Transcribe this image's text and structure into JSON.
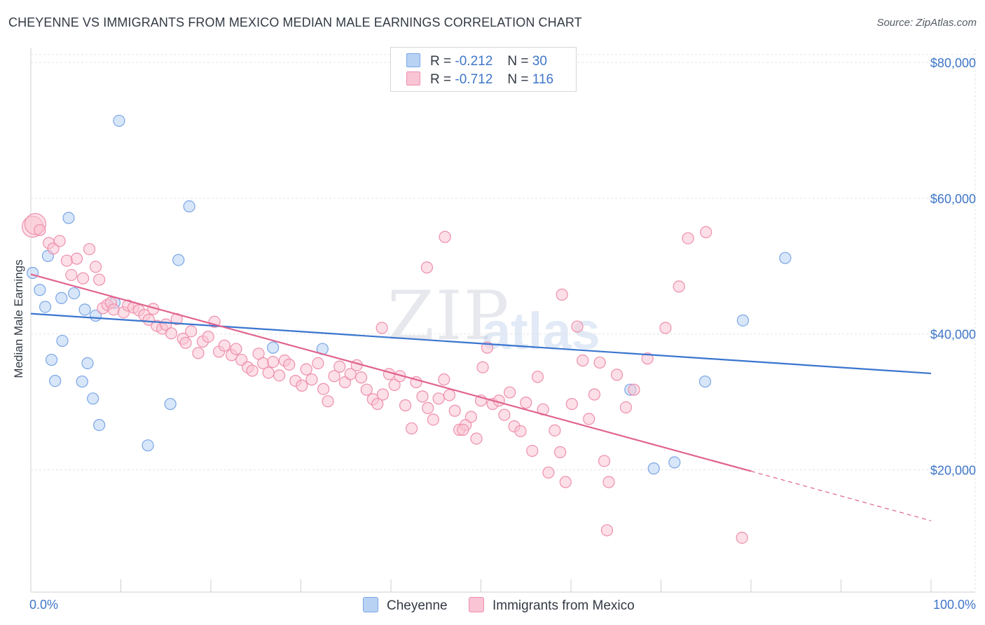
{
  "title": "CHEYENNE VS IMMIGRANTS FROM MEXICO MEDIAN MALE EARNINGS CORRELATION CHART",
  "source": "Source: ZipAtlas.com",
  "watermark": {
    "zip": "ZIP",
    "atlas": "atlas"
  },
  "legend": {
    "r_label": "R =",
    "n_label": "N =",
    "rows": [
      {
        "name": "Cheyenne",
        "r": "-0.212",
        "n": "30",
        "fill": "#b8d2f4",
        "stroke": "#7aa6e6"
      },
      {
        "name": "Immigrants from Mexico",
        "r": "-0.712",
        "n": "116",
        "fill": "#f9c4d4",
        "stroke": "#ee8fac"
      }
    ]
  },
  "chart_data": {
    "type": "scatter",
    "title": "CHEYENNE VS IMMIGRANTS FROM MEXICO MEDIAN MALE EARNINGS CORRELATION CHART",
    "xlabel": "",
    "ylabel": "Median Male Earnings",
    "xlim": [
      0,
      100
    ],
    "ylim": [
      2000,
      83000
    ],
    "x_tick_labels": [
      "0.0%",
      "100.0%"
    ],
    "y_ticks": [
      20000,
      40000,
      60000,
      80000
    ],
    "y_tick_labels": [
      "$20,000",
      "$40,000",
      "$60,000",
      "$80,000"
    ],
    "grid": true,
    "legend_position": "top-center",
    "series": [
      {
        "name": "Cheyenne",
        "color": "#3a75cf",
        "fill": "#b8d2f4",
        "trend": {
          "x": [
            0,
            100
          ],
          "y": [
            43000,
            34200
          ]
        },
        "x": [
          0.2,
          1.0,
          1.6,
          1.9,
          2.3,
          2.7,
          3.4,
          3.5,
          4.2,
          4.8,
          5.7,
          6.0,
          6.3,
          6.9,
          7.2,
          7.6,
          9.3,
          9.8,
          13.0,
          15.5,
          16.4,
          17.6,
          26.9,
          32.4,
          66.6,
          69.2,
          71.5,
          74.9,
          79.1,
          83.8
        ],
        "y": [
          49000,
          46500,
          44000,
          51500,
          36200,
          33100,
          45300,
          39000,
          57100,
          46000,
          33000,
          43600,
          35700,
          30500,
          42700,
          26600,
          44600,
          71400,
          23600,
          29700,
          50900,
          58800,
          38000,
          37800,
          31800,
          20200,
          21100,
          33000,
          42000,
          51200
        ]
      },
      {
        "name": "Immigrants from Mexico",
        "color": "#e0638f",
        "fill": "#f9c4d4",
        "trend": {
          "x": [
            0,
            80
          ],
          "y": [
            48800,
            19800
          ]
        },
        "trend_dashed": {
          "x": [
            80,
            100
          ],
          "y": [
            19800,
            12500
          ]
        },
        "x": [
          0.2,
          0.5,
          1.0,
          2.0,
          2.5,
          3.2,
          4.0,
          4.5,
          5.1,
          5.8,
          6.5,
          7.2,
          7.6,
          8.0,
          8.5,
          8.9,
          9.2,
          10.3,
          10.8,
          11.4,
          12.0,
          12.6,
          13.1,
          13.6,
          14.0,
          14.6,
          15.0,
          15.6,
          16.2,
          16.9,
          17.2,
          17.8,
          18.6,
          19.1,
          19.7,
          20.4,
          20.9,
          21.5,
          22.3,
          22.8,
          23.4,
          24.1,
          24.6,
          25.3,
          25.8,
          26.4,
          26.9,
          27.6,
          28.2,
          28.7,
          29.4,
          30.1,
          30.6,
          31.2,
          31.9,
          32.5,
          33.0,
          33.7,
          34.3,
          34.9,
          35.5,
          36.2,
          36.7,
          37.3,
          38.0,
          38.5,
          39.1,
          39.8,
          40.4,
          41.0,
          41.6,
          42.3,
          42.8,
          43.5,
          44.1,
          44.7,
          45.3,
          45.9,
          46.5,
          47.1,
          47.6,
          48.3,
          48.9,
          49.5,
          50.2,
          50.7,
          51.3,
          52.0,
          52.6,
          53.2,
          53.7,
          54.4,
          55.0,
          55.7,
          56.3,
          56.9,
          57.5,
          58.2,
          58.8,
          59.4,
          60.1,
          60.7,
          61.3,
          62.0,
          62.6,
          63.2,
          63.7,
          64.2,
          65.1,
          66.1,
          67.0,
          68.5,
          70.5,
          72.0,
          73.0,
          75.0
        ],
        "y": [
          55800,
          56200,
          55300,
          53400,
          52600,
          53700,
          50800,
          48700,
          51100,
          48200,
          52500,
          49900,
          48000,
          43800,
          44300,
          44600,
          43600,
          43200,
          44200,
          43900,
          43500,
          42800,
          42100,
          43700,
          41200,
          40800,
          41400,
          40100,
          42200,
          39300,
          38700,
          40400,
          37200,
          38900,
          39600,
          41800,
          37400,
          38300,
          36900,
          37800,
          36200,
          35100,
          34600,
          37100,
          35700,
          34300,
          35900,
          33900,
          36100,
          35500,
          33100,
          32400,
          34800,
          33300,
          35700,
          31900,
          30100,
          33800,
          35200,
          32900,
          34100,
          35400,
          33600,
          31800,
          30400,
          29700,
          31100,
          34100,
          32500,
          33800,
          29500,
          26100,
          32900,
          30800,
          29100,
          27400,
          30500,
          33300,
          31000,
          28700,
          25900,
          26600,
          27800,
          24600,
          35100,
          38000,
          29700,
          30200,
          28100,
          31400,
          26400,
          25700,
          29900,
          22800,
          33700,
          28900,
          19600,
          25800,
          22600,
          18200,
          29700,
          41100,
          36100,
          27500,
          31100,
          35800,
          21300,
          18200,
          34000,
          29200,
          31800,
          36400,
          40900,
          47000,
          54100,
          55000
        ]
      }
    ]
  },
  "extra_points": {
    "note_free": true,
    "pink_x": [
      39.0,
      44.0,
      46.0,
      48.0,
      50.0,
      59.0,
      64.0,
      79.0
    ],
    "pink_y": [
      40900,
      49800,
      54300,
      25900,
      30200,
      45800,
      11100,
      10000
    ]
  }
}
